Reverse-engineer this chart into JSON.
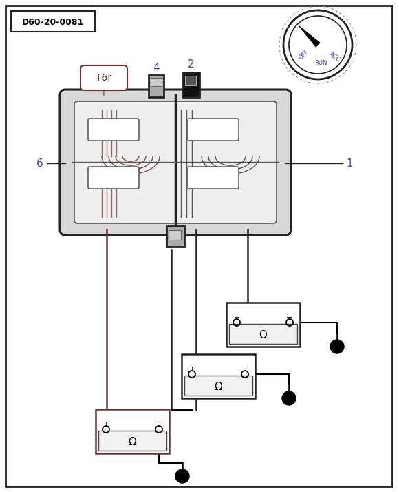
{
  "label_d60": "D60-20-0081",
  "connector_label": "T6r",
  "pin_label_color": "#4444bb",
  "dial_label_color": "#4444bb",
  "dial_labels": [
    "OFF",
    "RUN",
    "ACC"
  ],
  "conn_color": "#555555",
  "brown": "#6b3030",
  "dark": "#222222"
}
